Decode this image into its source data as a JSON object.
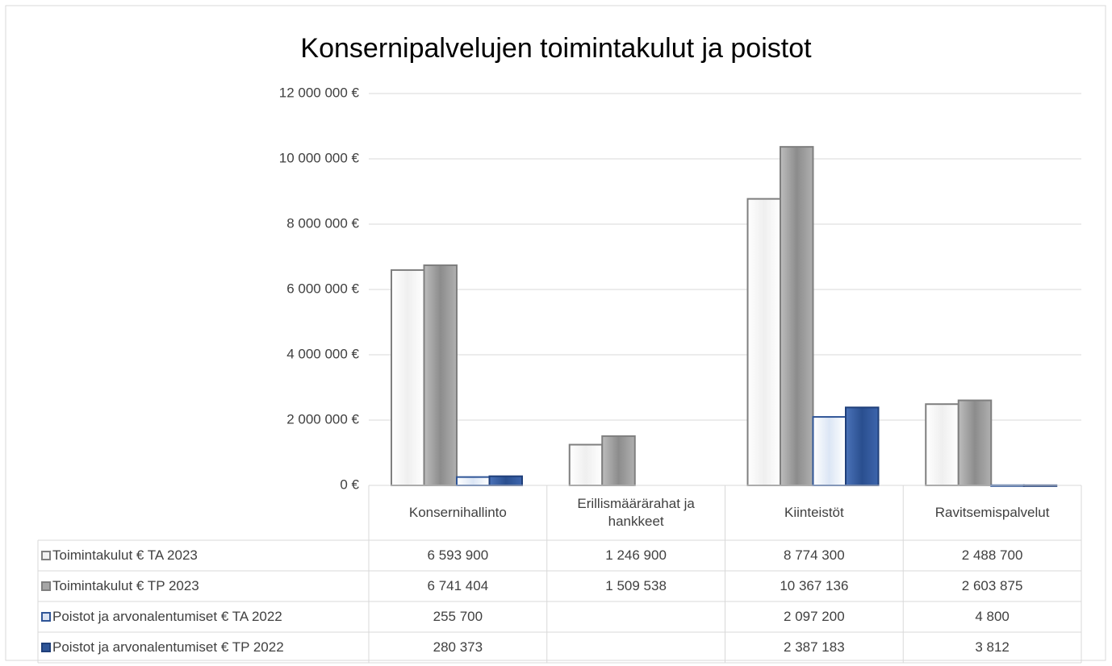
{
  "chart_data": {
    "type": "bar",
    "title": "Konsernipalvelujen toimintakulut ja poistot",
    "categories": [
      "Konsernihallinto",
      "Erillismäärärahat ja hankkeet",
      "Kiinteistöt",
      "Ravitsemispalvelut"
    ],
    "series": [
      {
        "name": "Toimintakulut € TA 2023",
        "color": "#ffffff",
        "values": [
          6593900,
          1246900,
          8774300,
          2488700
        ],
        "value_labels": [
          "6 593 900",
          "1 246 900",
          "8 774 300",
          "2 488 700"
        ]
      },
      {
        "name": "Toimintakulut € TP 2023",
        "color": "#a6a6a6",
        "values": [
          6741404,
          1509538,
          10367136,
          2603875
        ],
        "value_labels": [
          "6 741 404",
          "1 509 538",
          "10 367 136",
          "2 603 875"
        ]
      },
      {
        "name": "Poistot ja arvonalentumiset € TA 2022",
        "color": "#dae3f3",
        "values": [
          255700,
          null,
          2097200,
          4800
        ],
        "value_labels": [
          "255 700",
          null,
          "2 097 200",
          "4 800"
        ]
      },
      {
        "name": "Poistot ja arvonalentumiset € TP 2022",
        "color": "#2f5597",
        "values": [
          280373,
          null,
          2387183,
          3812
        ],
        "value_labels": [
          "280 373",
          null,
          "2 387 183",
          "3 812"
        ]
      }
    ],
    "ylim": [
      0,
      12000000
    ],
    "yticks": [
      {
        "value": 0,
        "label": "0 €"
      },
      {
        "value": 2000000,
        "label": "2 000 000 €"
      },
      {
        "value": 4000000,
        "label": "4 000 000 €"
      },
      {
        "value": 6000000,
        "label": "6 000 000 €"
      },
      {
        "value": 8000000,
        "label": "8 000 000 €"
      },
      {
        "value": 10000000,
        "label": "10 000 000 €"
      },
      {
        "value": 12000000,
        "label": "12 000 000 €"
      }
    ],
    "grid": true
  }
}
